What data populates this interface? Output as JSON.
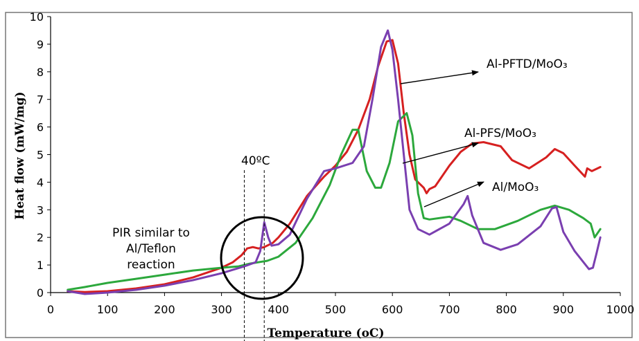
{
  "chart_data": {
    "type": "line",
    "xlabel": "Temperature (oC)",
    "ylabel": "Heat flow (mW/mg)",
    "xlim": [
      0,
      1000
    ],
    "ylim": [
      0,
      10
    ],
    "x_ticks": [
      0,
      100,
      200,
      300,
      400,
      500,
      600,
      700,
      800,
      900,
      1000
    ],
    "y_ticks": [
      0,
      1,
      2,
      3,
      4,
      5,
      6,
      7,
      8,
      9,
      10
    ],
    "grid": false,
    "legend": "none",
    "series": [
      {
        "name": "Al-PFTD/MoO3",
        "color": "#d62020",
        "points": [
          [
            30,
            0.05
          ],
          [
            60,
            0.02
          ],
          [
            100,
            0.05
          ],
          [
            150,
            0.15
          ],
          [
            200,
            0.3
          ],
          [
            250,
            0.55
          ],
          [
            300,
            0.9
          ],
          [
            320,
            1.1
          ],
          [
            335,
            1.35
          ],
          [
            345,
            1.6
          ],
          [
            355,
            1.65
          ],
          [
            365,
            1.6
          ],
          [
            375,
            1.65
          ],
          [
            390,
            1.8
          ],
          [
            400,
            2.0
          ],
          [
            420,
            2.5
          ],
          [
            450,
            3.5
          ],
          [
            480,
            4.2
          ],
          [
            500,
            4.6
          ],
          [
            520,
            5.1
          ],
          [
            540,
            5.9
          ],
          [
            560,
            7.0
          ],
          [
            575,
            8.2
          ],
          [
            590,
            9.1
          ],
          [
            600,
            9.15
          ],
          [
            610,
            8.3
          ],
          [
            620,
            6.5
          ],
          [
            630,
            5.0
          ],
          [
            640,
            4.1
          ],
          [
            655,
            3.8
          ],
          [
            660,
            3.6
          ],
          [
            665,
            3.75
          ],
          [
            675,
            3.85
          ],
          [
            700,
            4.6
          ],
          [
            720,
            5.1
          ],
          [
            740,
            5.4
          ],
          [
            760,
            5.45
          ],
          [
            790,
            5.3
          ],
          [
            810,
            4.8
          ],
          [
            840,
            4.5
          ],
          [
            870,
            4.9
          ],
          [
            885,
            5.2
          ],
          [
            900,
            5.05
          ],
          [
            920,
            4.6
          ],
          [
            938,
            4.2
          ],
          [
            942,
            4.5
          ],
          [
            950,
            4.4
          ],
          [
            965,
            4.55
          ]
        ]
      },
      {
        "name": "Al-PFS/MoO3",
        "color": "#2ca83c",
        "points": [
          [
            30,
            0.1
          ],
          [
            60,
            0.2
          ],
          [
            100,
            0.35
          ],
          [
            150,
            0.5
          ],
          [
            200,
            0.65
          ],
          [
            250,
            0.8
          ],
          [
            300,
            0.9
          ],
          [
            330,
            0.95
          ],
          [
            350,
            1.05
          ],
          [
            380,
            1.15
          ],
          [
            400,
            1.3
          ],
          [
            430,
            1.8
          ],
          [
            460,
            2.7
          ],
          [
            490,
            3.9
          ],
          [
            510,
            5.0
          ],
          [
            530,
            5.9
          ],
          [
            540,
            5.9
          ],
          [
            555,
            4.4
          ],
          [
            570,
            3.8
          ],
          [
            580,
            3.8
          ],
          [
            595,
            4.7
          ],
          [
            610,
            6.2
          ],
          [
            625,
            6.5
          ],
          [
            635,
            5.7
          ],
          [
            645,
            3.6
          ],
          [
            655,
            2.7
          ],
          [
            665,
            2.65
          ],
          [
            700,
            2.75
          ],
          [
            720,
            2.6
          ],
          [
            750,
            2.3
          ],
          [
            780,
            2.3
          ],
          [
            820,
            2.6
          ],
          [
            860,
            3.0
          ],
          [
            885,
            3.15
          ],
          [
            910,
            3.0
          ],
          [
            935,
            2.7
          ],
          [
            948,
            2.5
          ],
          [
            955,
            2.0
          ],
          [
            965,
            2.3
          ]
        ]
      },
      {
        "name": "Al/MoO3",
        "color": "#7a3fb0",
        "points": [
          [
            30,
            0.05
          ],
          [
            60,
            -0.05
          ],
          [
            100,
            0.0
          ],
          [
            150,
            0.1
          ],
          [
            200,
            0.25
          ],
          [
            250,
            0.45
          ],
          [
            300,
            0.7
          ],
          [
            340,
            0.95
          ],
          [
            360,
            1.1
          ],
          [
            368,
            1.5
          ],
          [
            375,
            2.55
          ],
          [
            382,
            2.0
          ],
          [
            388,
            1.7
          ],
          [
            400,
            1.75
          ],
          [
            420,
            2.1
          ],
          [
            450,
            3.4
          ],
          [
            480,
            4.4
          ],
          [
            500,
            4.5
          ],
          [
            530,
            4.7
          ],
          [
            550,
            5.3
          ],
          [
            565,
            7.0
          ],
          [
            580,
            8.9
          ],
          [
            592,
            9.5
          ],
          [
            600,
            8.8
          ],
          [
            610,
            7.0
          ],
          [
            620,
            5.0
          ],
          [
            630,
            3.0
          ],
          [
            645,
            2.3
          ],
          [
            665,
            2.1
          ],
          [
            700,
            2.5
          ],
          [
            725,
            3.2
          ],
          [
            732,
            3.5
          ],
          [
            740,
            2.8
          ],
          [
            760,
            1.8
          ],
          [
            790,
            1.55
          ],
          [
            820,
            1.75
          ],
          [
            860,
            2.4
          ],
          [
            880,
            3.05
          ],
          [
            888,
            3.1
          ],
          [
            900,
            2.2
          ],
          [
            920,
            1.5
          ],
          [
            945,
            0.85
          ],
          [
            952,
            0.9
          ],
          [
            958,
            1.4
          ],
          [
            965,
            2.0
          ]
        ]
      }
    ],
    "annotations": {
      "label_pftd": "Al-PFTD/MoO₃",
      "label_pfs": "Al-PFS/MoO₃",
      "label_al": "Al/MoO₃",
      "delta_label": "40ºC",
      "pir_lines": [
        "PIR similar to",
        "Al/Teflon",
        "reaction"
      ]
    }
  }
}
